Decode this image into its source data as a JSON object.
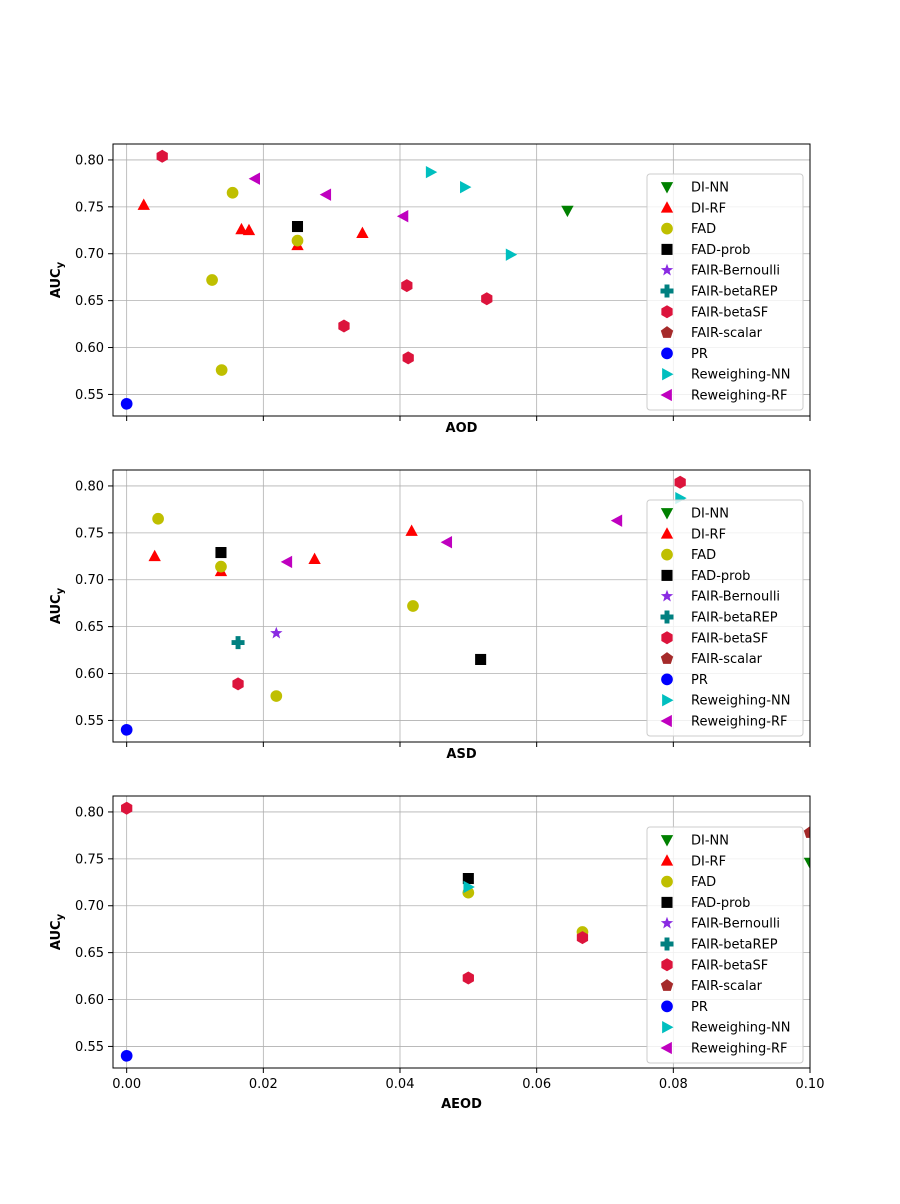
{
  "figure": {
    "legend_entries": [
      {
        "name": "DI-NN",
        "marker": "triangle-down-icon",
        "color": "#008000"
      },
      {
        "name": "DI-RF",
        "marker": "triangle-up-icon",
        "color": "#ff0000"
      },
      {
        "name": "FAD",
        "marker": "circle-icon",
        "color": "#bfbf00"
      },
      {
        "name": "FAD-prob",
        "marker": "square-icon",
        "color": "#000000"
      },
      {
        "name": "FAIR-Bernoulli",
        "marker": "star-icon",
        "color": "#8a2be2"
      },
      {
        "name": "FAIR-betaREP",
        "marker": "plus-icon",
        "color": "#008080"
      },
      {
        "name": "FAIR-betaSF",
        "marker": "hexagon-icon",
        "color": "#dc143c"
      },
      {
        "name": "FAIR-scalar",
        "marker": "pentagon-icon",
        "color": "#a52a2a"
      },
      {
        "name": "PR",
        "marker": "circle-icon",
        "color": "#0000ff"
      },
      {
        "name": "Reweighing-NN",
        "marker": "triangle-right-icon",
        "color": "#00bfbf"
      },
      {
        "name": "Reweighing-RF",
        "marker": "triangle-left-icon",
        "color": "#bf00bf"
      }
    ]
  },
  "chart_data": [
    {
      "type": "scatter",
      "xlabel": "AOD",
      "ylabel": "AUC",
      "ylabel_sub": "y",
      "xlim": [
        -0.002,
        0.1
      ],
      "ylim": [
        0.527,
        0.817
      ],
      "xticks": [
        0.0,
        0.02,
        0.04,
        0.06,
        0.08,
        0.1
      ],
      "yticks": [
        0.55,
        0.6,
        0.65,
        0.7,
        0.75,
        0.8
      ],
      "ytick_labels": [
        "0.55",
        "0.60",
        "0.65",
        "0.70",
        "0.75",
        "0.80"
      ],
      "show_xtick_labels": false,
      "grid": true,
      "legend": "right",
      "series": [
        {
          "name": "DI-NN",
          "points": [
            [
              0.0645,
              0.746
            ]
          ]
        },
        {
          "name": "DI-RF",
          "points": [
            [
              0.0025,
              0.752
            ],
            [
              0.0168,
              0.726
            ],
            [
              0.0179,
              0.725
            ],
            [
              0.025,
              0.709
            ],
            [
              0.0345,
              0.722
            ]
          ]
        },
        {
          "name": "FAD",
          "points": [
            [
              0.0155,
              0.765
            ],
            [
              0.0125,
              0.672
            ],
            [
              0.025,
              0.714
            ],
            [
              0.0139,
              0.576
            ]
          ]
        },
        {
          "name": "FAD-prob",
          "points": [
            [
              0.025,
              0.729
            ]
          ]
        },
        {
          "name": "FAIR-Bernoulli",
          "points": []
        },
        {
          "name": "FAIR-betaREP",
          "points": []
        },
        {
          "name": "FAIR-betaSF",
          "points": [
            [
              0.0052,
              0.804
            ],
            [
              0.041,
              0.666
            ],
            [
              0.0318,
              0.623
            ],
            [
              0.0412,
              0.589
            ],
            [
              0.0527,
              0.652
            ]
          ]
        },
        {
          "name": "FAIR-scalar",
          "points": []
        },
        {
          "name": "PR",
          "points": [
            [
              0.0,
              0.54
            ]
          ]
        },
        {
          "name": "Reweighing-NN",
          "points": [
            [
              0.0445,
              0.787
            ],
            [
              0.0495,
              0.771
            ],
            [
              0.0562,
              0.699
            ]
          ]
        },
        {
          "name": "Reweighing-RF",
          "points": [
            [
              0.0188,
              0.78
            ],
            [
              0.0292,
              0.763
            ],
            [
              0.0405,
              0.74
            ]
          ]
        }
      ]
    },
    {
      "type": "scatter",
      "xlabel": "ASD",
      "ylabel": "AUC",
      "ylabel_sub": "y",
      "xlim": [
        -0.002,
        0.1
      ],
      "ylim": [
        0.527,
        0.817
      ],
      "xticks": [
        0.0,
        0.02,
        0.04,
        0.06,
        0.08,
        0.1
      ],
      "yticks": [
        0.55,
        0.6,
        0.65,
        0.7,
        0.75,
        0.8
      ],
      "ytick_labels": [
        "0.55",
        "0.60",
        "0.65",
        "0.70",
        "0.75",
        "0.80"
      ],
      "show_xtick_labels": false,
      "grid": true,
      "legend": "right",
      "series": [
        {
          "name": "DI-NN",
          "points": []
        },
        {
          "name": "DI-RF",
          "points": [
            [
              0.0041,
              0.725
            ],
            [
              0.0138,
              0.709
            ],
            [
              0.0275,
              0.722
            ],
            [
              0.0417,
              0.752
            ]
          ]
        },
        {
          "name": "FAD",
          "points": [
            [
              0.0046,
              0.765
            ],
            [
              0.0138,
              0.714
            ],
            [
              0.0419,
              0.672
            ],
            [
              0.0219,
              0.576
            ]
          ]
        },
        {
          "name": "FAD-prob",
          "points": [
            [
              0.0138,
              0.729
            ],
            [
              0.0518,
              0.615
            ]
          ]
        },
        {
          "name": "FAIR-Bernoulli",
          "points": [
            [
              0.0219,
              0.643
            ]
          ]
        },
        {
          "name": "FAIR-betaREP",
          "points": [
            [
              0.0163,
              0.633
            ]
          ]
        },
        {
          "name": "FAIR-betaSF",
          "points": [
            [
              0.0163,
              0.589
            ],
            [
              0.081,
              0.804
            ]
          ]
        },
        {
          "name": "FAIR-scalar",
          "points": []
        },
        {
          "name": "PR",
          "points": [
            [
              0.0,
              0.54
            ]
          ]
        },
        {
          "name": "Reweighing-NN",
          "points": [
            [
              0.081,
              0.787
            ]
          ]
        },
        {
          "name": "Reweighing-RF",
          "points": [
            [
              0.0235,
              0.719
            ],
            [
              0.0469,
              0.74
            ],
            [
              0.0718,
              0.763
            ]
          ]
        }
      ]
    },
    {
      "type": "scatter",
      "xlabel": "AEOD",
      "ylabel": "AUC",
      "ylabel_sub": "y",
      "xlim": [
        -0.002,
        0.1
      ],
      "ylim": [
        0.527,
        0.817
      ],
      "xticks": [
        0.0,
        0.02,
        0.04,
        0.06,
        0.08,
        0.1
      ],
      "xtick_labels": [
        "0.00",
        "0.02",
        "0.04",
        "0.06",
        "0.08",
        "0.10"
      ],
      "yticks": [
        0.55,
        0.6,
        0.65,
        0.7,
        0.75,
        0.8
      ],
      "ytick_labels": [
        "0.55",
        "0.60",
        "0.65",
        "0.70",
        "0.75",
        "0.80"
      ],
      "show_xtick_labels": true,
      "grid": true,
      "legend": "right",
      "series": [
        {
          "name": "DI-NN",
          "points": [
            [
              0.1,
              0.746
            ]
          ]
        },
        {
          "name": "DI-RF",
          "points": []
        },
        {
          "name": "FAD",
          "points": [
            [
              0.05,
              0.714
            ],
            [
              0.0667,
              0.672
            ]
          ]
        },
        {
          "name": "FAD-prob",
          "points": [
            [
              0.05,
              0.729
            ]
          ]
        },
        {
          "name": "FAIR-Bernoulli",
          "points": []
        },
        {
          "name": "FAIR-betaREP",
          "points": []
        },
        {
          "name": "FAIR-betaSF",
          "points": [
            [
              0.0,
              0.804
            ],
            [
              0.05,
              0.623
            ],
            [
              0.0667,
              0.666
            ]
          ]
        },
        {
          "name": "FAIR-scalar",
          "points": [
            [
              0.1,
              0.778
            ]
          ]
        },
        {
          "name": "PR",
          "points": [
            [
              0.0,
              0.54
            ]
          ]
        },
        {
          "name": "Reweighing-NN",
          "points": [
            [
              0.05,
              0.72
            ]
          ]
        },
        {
          "name": "Reweighing-RF",
          "points": []
        }
      ]
    }
  ]
}
